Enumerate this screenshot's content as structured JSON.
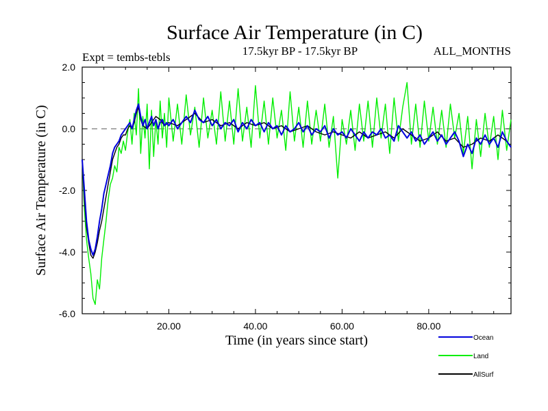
{
  "chart_data": {
    "type": "line",
    "title": "Surface Air Temperature (in C)",
    "subtitle_left": "Expt = tembs-tebls",
    "subtitle_center": "17.5kyr BP - 17.5kyr BP",
    "subtitle_right": "ALL_MONTHS",
    "xlabel": "Time (in years since start)",
    "ylabel": "Surface Air Temperature (in C)",
    "xlim": [
      0,
      99
    ],
    "ylim": [
      -6,
      2
    ],
    "x_ticks": [
      20,
      40,
      60,
      80
    ],
    "x_tick_labels": [
      "20.00",
      "40.00",
      "60.00",
      "80.00"
    ],
    "y_ticks": [
      2,
      0,
      -2,
      -4,
      -6
    ],
    "y_tick_labels": [
      "2.0",
      "0.0",
      "-2.0",
      "-4.0",
      "-6.0"
    ],
    "reference_line": {
      "y": 0,
      "style": "dashed"
    },
    "legend_placement": "bottom-right",
    "series": [
      {
        "name": "Land",
        "color": "#00ee00",
        "points": [
          [
            0,
            -1.0
          ],
          [
            0.5,
            -2.6
          ],
          [
            1,
            -3.6
          ],
          [
            1.5,
            -4.2
          ],
          [
            2,
            -4.7
          ],
          [
            2.5,
            -5.5
          ],
          [
            3,
            -5.7
          ],
          [
            3.5,
            -4.9
          ],
          [
            4,
            -5.2
          ],
          [
            4.5,
            -4.2
          ],
          [
            5,
            -3.6
          ],
          [
            5.5,
            -3.0
          ],
          [
            6,
            -2.3
          ],
          [
            6.5,
            -1.8
          ],
          [
            7,
            -1.6
          ],
          [
            7.5,
            -1.2
          ],
          [
            8,
            -1.4
          ],
          [
            8.5,
            -0.6
          ],
          [
            9,
            -0.8
          ],
          [
            9.5,
            -0.4
          ],
          [
            10,
            -0.7
          ],
          [
            10.5,
            -0.1
          ],
          [
            11,
            0.3
          ],
          [
            11.5,
            -0.5
          ],
          [
            12,
            0.5
          ],
          [
            12.5,
            -0.2
          ],
          [
            13,
            1.3
          ],
          [
            13.5,
            -0.8
          ],
          [
            14,
            0.4
          ],
          [
            14.5,
            -0.3
          ],
          [
            15,
            0.8
          ],
          [
            15.5,
            -1.3
          ],
          [
            16,
            0.6
          ],
          [
            16.5,
            -0.9
          ],
          [
            17,
            0.3
          ],
          [
            17.5,
            -0.5
          ],
          [
            18,
            0.9
          ],
          [
            18.5,
            -0.3
          ],
          [
            19,
            0.5
          ],
          [
            19.5,
            -0.6
          ],
          [
            20,
            1.0
          ],
          [
            21,
            -0.4
          ],
          [
            22,
            0.8
          ],
          [
            23,
            -0.5
          ],
          [
            24,
            1.1
          ],
          [
            25,
            -0.2
          ],
          [
            26,
            0.7
          ],
          [
            27,
            -0.6
          ],
          [
            28,
            1.0
          ],
          [
            29,
            -0.3
          ],
          [
            30,
            0.6
          ],
          [
            31,
            -0.5
          ],
          [
            32,
            1.2
          ],
          [
            33,
            -0.4
          ],
          [
            34,
            0.9
          ],
          [
            35,
            -0.5
          ],
          [
            36,
            1.3
          ],
          [
            37,
            -0.4
          ],
          [
            38,
            0.7
          ],
          [
            39,
            -0.6
          ],
          [
            40,
            1.4
          ],
          [
            41,
            -0.3
          ],
          [
            42,
            0.9
          ],
          [
            43,
            -0.5
          ],
          [
            44,
            1.0
          ],
          [
            45,
            -0.3
          ],
          [
            46,
            0.6
          ],
          [
            47,
            -0.7
          ],
          [
            48,
            1.2
          ],
          [
            49,
            -0.4
          ],
          [
            50,
            0.7
          ],
          [
            51,
            -0.6
          ],
          [
            52,
            0.9
          ],
          [
            53,
            -0.5
          ],
          [
            54,
            0.6
          ],
          [
            55,
            -0.4
          ],
          [
            56,
            0.8
          ],
          [
            57,
            -0.6
          ],
          [
            58,
            0.4
          ],
          [
            59,
            -1.6
          ],
          [
            60,
            0.3
          ],
          [
            61,
            -0.5
          ],
          [
            62,
            0.6
          ],
          [
            63,
            -0.7
          ],
          [
            64,
            0.8
          ],
          [
            65,
            -0.4
          ],
          [
            66,
            0.9
          ],
          [
            67,
            -0.6
          ],
          [
            68,
            1.0
          ],
          [
            69,
            -0.3
          ],
          [
            70,
            0.8
          ],
          [
            71,
            -0.8
          ],
          [
            72,
            1.0
          ],
          [
            73,
            -0.4
          ],
          [
            74,
            0.7
          ],
          [
            75,
            1.5
          ],
          [
            76,
            -0.5
          ],
          [
            77,
            0.8
          ],
          [
            78,
            -0.6
          ],
          [
            79,
            0.9
          ],
          [
            80,
            -0.4
          ],
          [
            81,
            0.7
          ],
          [
            82,
            -0.5
          ],
          [
            83,
            0.6
          ],
          [
            84,
            -0.6
          ],
          [
            85,
            0.8
          ],
          [
            86,
            -0.3
          ],
          [
            87,
            0.5
          ],
          [
            88,
            -0.8
          ],
          [
            89,
            0.4
          ],
          [
            90,
            -1.3
          ],
          [
            91,
            0.3
          ],
          [
            92,
            -0.9
          ],
          [
            93,
            0.5
          ],
          [
            94,
            -0.6
          ],
          [
            95,
            0.4
          ],
          [
            96,
            -1.0
          ],
          [
            97,
            0.6
          ],
          [
            98,
            -0.7
          ],
          [
            99,
            0.3
          ]
        ]
      },
      {
        "name": "AllSurf",
        "color": "#000000",
        "points": [
          [
            0,
            -1.0
          ],
          [
            0.5,
            -2.3
          ],
          [
            1,
            -3.2
          ],
          [
            1.5,
            -3.7
          ],
          [
            2,
            -4.1
          ],
          [
            2.5,
            -4.2
          ],
          [
            3,
            -4.0
          ],
          [
            3.5,
            -3.7
          ],
          [
            4,
            -3.3
          ],
          [
            4.5,
            -3.0
          ],
          [
            5,
            -2.6
          ],
          [
            5.5,
            -2.2
          ],
          [
            6,
            -1.8
          ],
          [
            6.5,
            -1.4
          ],
          [
            7,
            -1.0
          ],
          [
            7.5,
            -0.8
          ],
          [
            8,
            -0.6
          ],
          [
            8.5,
            -0.5
          ],
          [
            9,
            -0.3
          ],
          [
            9.5,
            -0.2
          ],
          [
            10,
            -0.2
          ],
          [
            10.5,
            0.0
          ],
          [
            11,
            0.1
          ],
          [
            11.5,
            0.0
          ],
          [
            12,
            0.2
          ],
          [
            12.5,
            0.5
          ],
          [
            13,
            0.7
          ],
          [
            13.5,
            0.3
          ],
          [
            14,
            0.1
          ],
          [
            15,
            0.0
          ],
          [
            16,
            0.2
          ],
          [
            17,
            0.4
          ],
          [
            18,
            0.3
          ],
          [
            19,
            0.1
          ],
          [
            20,
            0.2
          ],
          [
            22,
            0.1
          ],
          [
            24,
            0.3
          ],
          [
            26,
            0.5
          ],
          [
            28,
            0.2
          ],
          [
            30,
            0.3
          ],
          [
            32,
            0.1
          ],
          [
            34,
            0.2
          ],
          [
            36,
            0.0
          ],
          [
            38,
            0.2
          ],
          [
            40,
            0.1
          ],
          [
            42,
            0.2
          ],
          [
            44,
            0.0
          ],
          [
            46,
            0.1
          ],
          [
            48,
            -0.1
          ],
          [
            50,
            0.0
          ],
          [
            52,
            0.1
          ],
          [
            54,
            -0.1
          ],
          [
            56,
            -0.2
          ],
          [
            58,
            -0.1
          ],
          [
            60,
            -0.2
          ],
          [
            62,
            -0.3
          ],
          [
            64,
            -0.1
          ],
          [
            66,
            -0.3
          ],
          [
            68,
            -0.2
          ],
          [
            70,
            -0.1
          ],
          [
            72,
            -0.3
          ],
          [
            74,
            0.0
          ],
          [
            76,
            -0.2
          ],
          [
            78,
            -0.4
          ],
          [
            80,
            -0.3
          ],
          [
            82,
            -0.1
          ],
          [
            84,
            -0.4
          ],
          [
            86,
            -0.3
          ],
          [
            88,
            -0.6
          ],
          [
            90,
            -0.5
          ],
          [
            92,
            -0.3
          ],
          [
            94,
            -0.4
          ],
          [
            96,
            -0.2
          ],
          [
            98,
            -0.4
          ],
          [
            99,
            -0.6
          ]
        ]
      },
      {
        "name": "Ocean",
        "color": "#0000dd",
        "points": [
          [
            0,
            -1.0
          ],
          [
            0.5,
            -2.0
          ],
          [
            1,
            -3.0
          ],
          [
            1.5,
            -3.6
          ],
          [
            2,
            -3.9
          ],
          [
            2.5,
            -4.1
          ],
          [
            3,
            -3.9
          ],
          [
            3.5,
            -3.5
          ],
          [
            4,
            -3.0
          ],
          [
            4.5,
            -2.6
          ],
          [
            5,
            -2.1
          ],
          [
            5.5,
            -1.8
          ],
          [
            6,
            -1.5
          ],
          [
            6.5,
            -1.2
          ],
          [
            7,
            -0.8
          ],
          [
            7.5,
            -0.6
          ],
          [
            8,
            -0.5
          ],
          [
            8.5,
            -0.4
          ],
          [
            9,
            -0.2
          ],
          [
            9.5,
            -0.1
          ],
          [
            10,
            0.0
          ],
          [
            10.5,
            0.1
          ],
          [
            11,
            0.2
          ],
          [
            11.5,
            0.0
          ],
          [
            12,
            0.3
          ],
          [
            12.5,
            0.6
          ],
          [
            13,
            0.8
          ],
          [
            13.5,
            0.4
          ],
          [
            14,
            0.1
          ],
          [
            14.5,
            0.3
          ],
          [
            15,
            0.0
          ],
          [
            15.5,
            0.2
          ],
          [
            16,
            0.4
          ],
          [
            16.5,
            0.1
          ],
          [
            17,
            0.3
          ],
          [
            17.5,
            0.0
          ],
          [
            18,
            0.2
          ],
          [
            18.5,
            0.3
          ],
          [
            19,
            0.1
          ],
          [
            19.5,
            0.2
          ],
          [
            20,
            0.1
          ],
          [
            21,
            0.3
          ],
          [
            22,
            0.0
          ],
          [
            23,
            0.2
          ],
          [
            24,
            0.4
          ],
          [
            25,
            0.2
          ],
          [
            26,
            0.6
          ],
          [
            27,
            0.3
          ],
          [
            28,
            0.2
          ],
          [
            29,
            0.4
          ],
          [
            30,
            0.1
          ],
          [
            31,
            0.3
          ],
          [
            32,
            0.0
          ],
          [
            33,
            0.2
          ],
          [
            34,
            0.1
          ],
          [
            35,
            0.3
          ],
          [
            36,
            -0.1
          ],
          [
            37,
            0.2
          ],
          [
            38,
            0.0
          ],
          [
            39,
            0.3
          ],
          [
            40,
            0.1
          ],
          [
            41,
            0.2
          ],
          [
            42,
            -0.1
          ],
          [
            43,
            0.2
          ],
          [
            44,
            0.0
          ],
          [
            45,
            0.1
          ],
          [
            46,
            -0.2
          ],
          [
            47,
            0.1
          ],
          [
            48,
            -0.1
          ],
          [
            49,
            0.0
          ],
          [
            50,
            0.2
          ],
          [
            51,
            -0.1
          ],
          [
            52,
            0.1
          ],
          [
            53,
            -0.2
          ],
          [
            54,
            0.0
          ],
          [
            55,
            -0.1
          ],
          [
            56,
            0.1
          ],
          [
            57,
            -0.3
          ],
          [
            58,
            0.0
          ],
          [
            59,
            -0.2
          ],
          [
            60,
            -0.1
          ],
          [
            61,
            -0.3
          ],
          [
            62,
            0.0
          ],
          [
            63,
            -0.2
          ],
          [
            64,
            -0.4
          ],
          [
            65,
            -0.1
          ],
          [
            66,
            -0.3
          ],
          [
            67,
            -0.1
          ],
          [
            68,
            -0.2
          ],
          [
            69,
            0.0
          ],
          [
            70,
            -0.3
          ],
          [
            71,
            -0.2
          ],
          [
            72,
            -0.4
          ],
          [
            73,
            0.1
          ],
          [
            74,
            -0.1
          ],
          [
            75,
            -0.3
          ],
          [
            76,
            -0.1
          ],
          [
            77,
            -0.4
          ],
          [
            78,
            -0.2
          ],
          [
            79,
            -0.5
          ],
          [
            80,
            -0.3
          ],
          [
            81,
            -0.1
          ],
          [
            82,
            -0.4
          ],
          [
            83,
            -0.2
          ],
          [
            84,
            -0.5
          ],
          [
            85,
            -0.3
          ],
          [
            86,
            -0.1
          ],
          [
            87,
            -0.4
          ],
          [
            88,
            -0.9
          ],
          [
            89,
            -0.5
          ],
          [
            90,
            -0.8
          ],
          [
            91,
            -0.3
          ],
          [
            92,
            -0.5
          ],
          [
            93,
            -0.2
          ],
          [
            94,
            -0.5
          ],
          [
            95,
            -0.3
          ],
          [
            96,
            -0.6
          ],
          [
            97,
            -0.1
          ],
          [
            98,
            -0.4
          ],
          [
            99,
            -0.6
          ]
        ]
      }
    ],
    "legend": [
      {
        "name": "Ocean",
        "color": "#0000dd"
      },
      {
        "name": "Land",
        "color": "#00ee00"
      },
      {
        "name": "AllSurf",
        "color": "#000000"
      }
    ]
  }
}
